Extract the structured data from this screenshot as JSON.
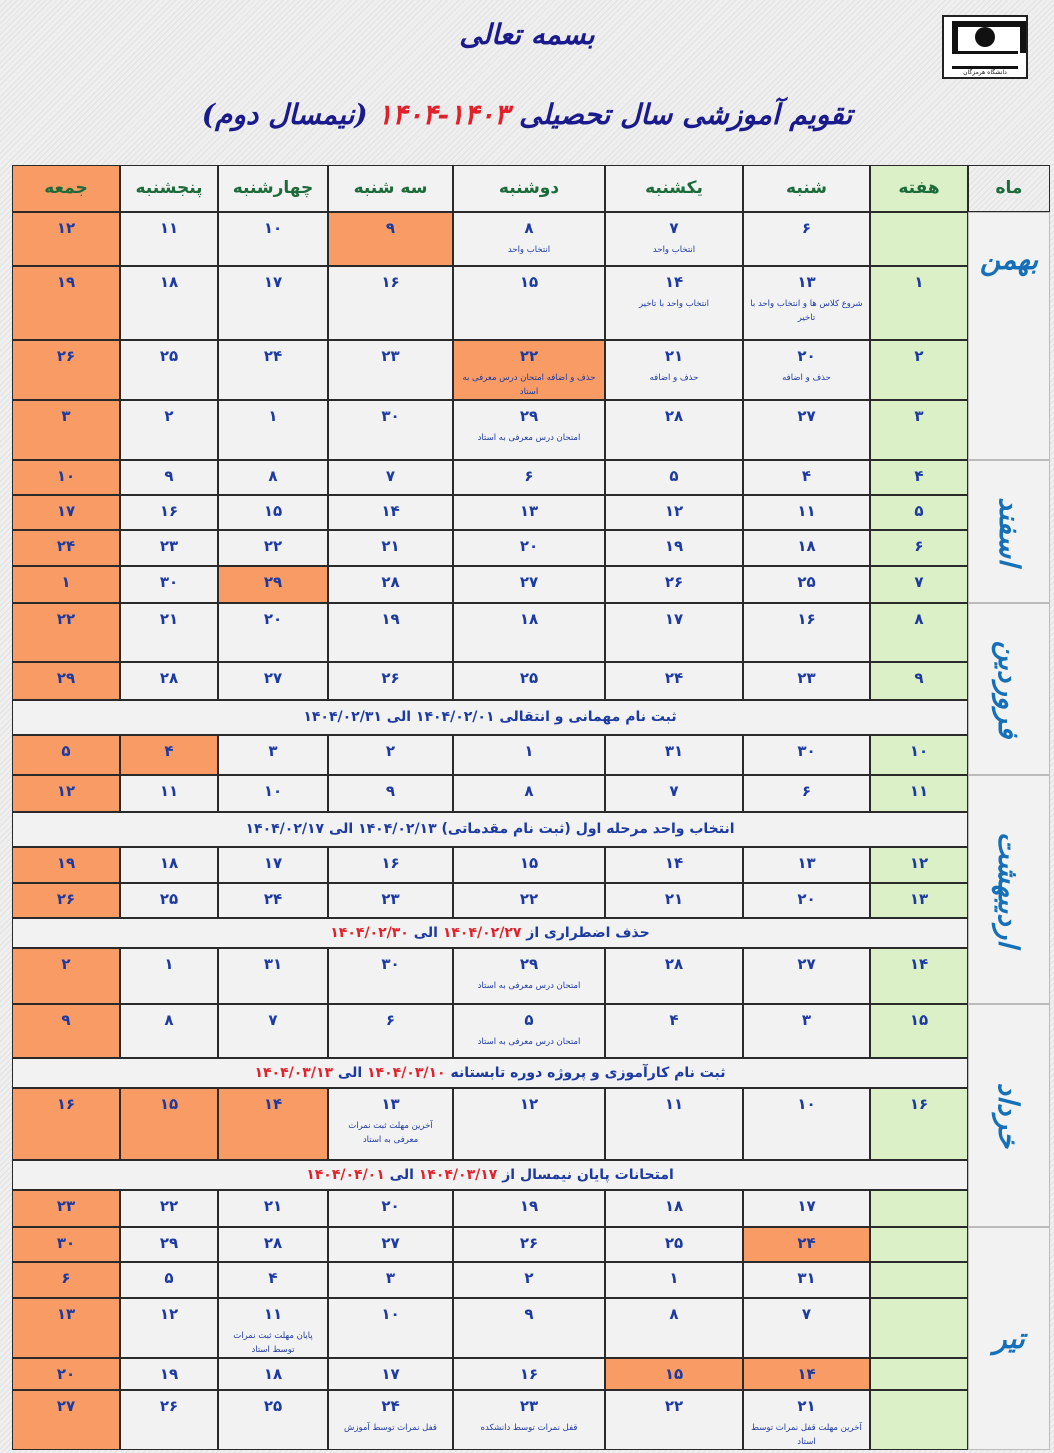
{
  "header": {
    "bismillah": "بسمه تعالی",
    "title_parts": [
      {
        "t": "تقویم آموزشی سال تحصیلی ",
        "red": false
      },
      {
        "t": "۱۴۰۳-۱۴۰۴",
        "red": true
      },
      {
        "t": " (نیمسال دوم)",
        "red": false
      }
    ],
    "logo_text": "دانشگاه هرمزگان"
  },
  "colors": {
    "holiday": "#f99b64",
    "week": "#dcf0c8",
    "cell": "#f2f2f2",
    "number": "#1c3aa0",
    "accent_red": "#e0202a",
    "header_text": "#1d6b3a"
  },
  "columns": [
    "ماه",
    "هفته",
    "شنبه",
    "یکشنبه",
    "دوشنبه",
    "سه شنبه",
    "چهارشنبه",
    "پنجشنبه",
    "جمعه"
  ],
  "months": [
    "بهمن",
    "اسفند",
    "فروردین",
    "اردیبهشت",
    "خرداد",
    "تیر"
  ],
  "rows": [
    {
      "type": "week",
      "week": "",
      "days": [
        {
          "n": "۶"
        },
        {
          "n": "۷",
          "note": "انتخاب واحد"
        },
        {
          "n": "۸",
          "note": "انتخاب واحد"
        },
        {
          "n": "۹",
          "hl": true
        },
        {
          "n": "۱۰"
        },
        {
          "n": "۱۱"
        },
        {
          "n": "۱۲",
          "hl": true
        }
      ]
    },
    {
      "type": "week",
      "week": "۱",
      "days": [
        {
          "n": "۱۳",
          "note": "شروع کلاس ها و انتخاب واحد با تاخیر"
        },
        {
          "n": "۱۴",
          "note": "انتخاب واحد با تاخیر"
        },
        {
          "n": "۱۵"
        },
        {
          "n": "۱۶"
        },
        {
          "n": "۱۷"
        },
        {
          "n": "۱۸"
        },
        {
          "n": "۱۹",
          "hl": true
        }
      ]
    },
    {
      "type": "week",
      "week": "۲",
      "days": [
        {
          "n": "۲۰",
          "note": "حذف و اضافه"
        },
        {
          "n": "۲۱",
          "note": "حذف و اضافه"
        },
        {
          "n": "۲۲",
          "note": "حذف و اضافه امتحان درس معرفی به استاد",
          "hl": true
        },
        {
          "n": "۲۳"
        },
        {
          "n": "۲۴"
        },
        {
          "n": "۲۵"
        },
        {
          "n": "۲۶",
          "hl": true
        }
      ]
    },
    {
      "type": "week",
      "week": "۳",
      "days": [
        {
          "n": "۲۷"
        },
        {
          "n": "۲۸"
        },
        {
          "n": "۲۹",
          "note": "امتحان درس معرفی به استاد"
        },
        {
          "n": "۳۰"
        },
        {
          "n": "۱"
        },
        {
          "n": "۲"
        },
        {
          "n": "۳",
          "hl": true
        }
      ]
    },
    {
      "type": "week",
      "week": "۴",
      "days": [
        {
          "n": "۴"
        },
        {
          "n": "۵"
        },
        {
          "n": "۶"
        },
        {
          "n": "۷"
        },
        {
          "n": "۸"
        },
        {
          "n": "۹"
        },
        {
          "n": "۱۰",
          "hl": true
        }
      ]
    },
    {
      "type": "week",
      "week": "۵",
      "days": [
        {
          "n": "۱۱"
        },
        {
          "n": "۱۲"
        },
        {
          "n": "۱۳"
        },
        {
          "n": "۱۴"
        },
        {
          "n": "۱۵"
        },
        {
          "n": "۱۶"
        },
        {
          "n": "۱۷",
          "hl": true
        }
      ]
    },
    {
      "type": "week",
      "week": "۶",
      "days": [
        {
          "n": "۱۸"
        },
        {
          "n": "۱۹"
        },
        {
          "n": "۲۰"
        },
        {
          "n": "۲۱"
        },
        {
          "n": "۲۲"
        },
        {
          "n": "۲۳"
        },
        {
          "n": "۲۴",
          "hl": true
        }
      ]
    },
    {
      "type": "week",
      "week": "۷",
      "days": [
        {
          "n": "۲۵"
        },
        {
          "n": "۲۶"
        },
        {
          "n": "۲۷"
        },
        {
          "n": "۲۸"
        },
        {
          "n": "۲۹",
          "hl": true
        },
        {
          "n": "۳۰"
        },
        {
          "n": "۱",
          "hl": true
        }
      ]
    },
    {
      "type": "week",
      "week": "۸",
      "days": [
        {
          "n": "۱۶"
        },
        {
          "n": "۱۷"
        },
        {
          "n": "۱۸"
        },
        {
          "n": "۱۹"
        },
        {
          "n": "۲۰"
        },
        {
          "n": "۲۱"
        },
        {
          "n": "۲۲",
          "hl": true
        }
      ]
    },
    {
      "type": "week",
      "week": "۹",
      "days": [
        {
          "n": "۲۳"
        },
        {
          "n": "۲۴"
        },
        {
          "n": "۲۵"
        },
        {
          "n": "۲۶"
        },
        {
          "n": "۲۷"
        },
        {
          "n": "۲۸"
        },
        {
          "n": "۲۹",
          "hl": true
        }
      ]
    },
    {
      "type": "banner",
      "parts": [
        {
          "t": "ثبت نام مهمانی و انتقالی ۱۴۰۴/۰۲/۰۱ الی ۱۴۰۴/۰۲/۳۱",
          "red": false
        }
      ]
    },
    {
      "type": "week",
      "week": "۱۰",
      "days": [
        {
          "n": "۳۰"
        },
        {
          "n": "۳۱"
        },
        {
          "n": "۱"
        },
        {
          "n": "۲"
        },
        {
          "n": "۳"
        },
        {
          "n": "۴",
          "hl": true
        },
        {
          "n": "۵",
          "hl": true
        }
      ]
    },
    {
      "type": "week",
      "week": "۱۱",
      "days": [
        {
          "n": "۶"
        },
        {
          "n": "۷"
        },
        {
          "n": "۸"
        },
        {
          "n": "۹"
        },
        {
          "n": "۱۰"
        },
        {
          "n": "۱۱"
        },
        {
          "n": "۱۲",
          "hl": true
        }
      ]
    },
    {
      "type": "banner",
      "parts": [
        {
          "t": "انتخاب واحد مرحله اول (ثبت نام مقدماتی) ۱۴۰۴/۰۲/۱۳ الی ۱۴۰۴/۰۲/۱۷",
          "red": false
        }
      ]
    },
    {
      "type": "week",
      "week": "۱۲",
      "days": [
        {
          "n": "۱۳"
        },
        {
          "n": "۱۴"
        },
        {
          "n": "۱۵"
        },
        {
          "n": "۱۶"
        },
        {
          "n": "۱۷"
        },
        {
          "n": "۱۸"
        },
        {
          "n": "۱۹",
          "hl": true
        }
      ]
    },
    {
      "type": "week",
      "week": "۱۳",
      "days": [
        {
          "n": "۲۰"
        },
        {
          "n": "۲۱"
        },
        {
          "n": "۲۲"
        },
        {
          "n": "۲۳"
        },
        {
          "n": "۲۴"
        },
        {
          "n": "۲۵"
        },
        {
          "n": "۲۶",
          "hl": true
        }
      ]
    },
    {
      "type": "banner",
      "parts": [
        {
          "t": "حذف اضطراری از ",
          "red": false
        },
        {
          "t": "۱۴۰۴/۰۲/۲۷",
          "red": true
        },
        {
          "t": " الی ",
          "red": false
        },
        {
          "t": "۱۴۰۴/۰۲/۳۰",
          "red": true
        }
      ]
    },
    {
      "type": "week",
      "week": "۱۴",
      "days": [
        {
          "n": "۲۷"
        },
        {
          "n": "۲۸"
        },
        {
          "n": "۲۹",
          "note": "امتحان درس معرفی به استاد"
        },
        {
          "n": "۳۰"
        },
        {
          "n": "۳۱"
        },
        {
          "n": "۱"
        },
        {
          "n": "۲",
          "hl": true
        }
      ]
    },
    {
      "type": "week",
      "week": "۱۵",
      "days": [
        {
          "n": "۳"
        },
        {
          "n": "۴"
        },
        {
          "n": "۵",
          "note": "امتحان درس معرفی به استاد"
        },
        {
          "n": "۶"
        },
        {
          "n": "۷"
        },
        {
          "n": "۸"
        },
        {
          "n": "۹",
          "hl": true
        }
      ]
    },
    {
      "type": "banner",
      "parts": [
        {
          "t": "ثبت نام کارآموزی و پروژه دوره تابستانه ",
          "red": false
        },
        {
          "t": "۱۴۰۴/۰۳/۱۰",
          "red": true
        },
        {
          "t": " الی ",
          "red": false
        },
        {
          "t": "۱۴۰۴/۰۳/۱۳",
          "red": true
        }
      ]
    },
    {
      "type": "week",
      "week": "۱۶",
      "days": [
        {
          "n": "۱۰"
        },
        {
          "n": "۱۱"
        },
        {
          "n": "۱۲"
        },
        {
          "n": "۱۳",
          "note": "آخرین مهلت ثبت نمرات معرفی به استاد"
        },
        {
          "n": "۱۴",
          "hl": true
        },
        {
          "n": "۱۵",
          "hl": true
        },
        {
          "n": "۱۶",
          "hl": true
        }
      ]
    },
    {
      "type": "banner",
      "parts": [
        {
          "t": "امتحانات پایان نیمسال از ",
          "red": false
        },
        {
          "t": "۱۴۰۴/۰۳/۱۷",
          "red": true
        },
        {
          "t": " الی ",
          "red": false
        },
        {
          "t": "۱۴۰۴/۰۴/۰۱",
          "red": true
        }
      ]
    },
    {
      "type": "week",
      "week": "",
      "days": [
        {
          "n": "۱۷"
        },
        {
          "n": "۱۸"
        },
        {
          "n": "۱۹"
        },
        {
          "n": "۲۰"
        },
        {
          "n": "۲۱"
        },
        {
          "n": "۲۲"
        },
        {
          "n": "۲۳",
          "hl": true
        }
      ]
    },
    {
      "type": "week",
      "week": "",
      "days": [
        {
          "n": "۲۴",
          "hl": true
        },
        {
          "n": "۲۵"
        },
        {
          "n": "۲۶"
        },
        {
          "n": "۲۷"
        },
        {
          "n": "۲۸"
        },
        {
          "n": "۲۹"
        },
        {
          "n": "۳۰",
          "hl": true
        }
      ]
    },
    {
      "type": "week",
      "week": "",
      "days": [
        {
          "n": "۳۱"
        },
        {
          "n": "۱"
        },
        {
          "n": "۲"
        },
        {
          "n": "۳"
        },
        {
          "n": "۴"
        },
        {
          "n": "۵"
        },
        {
          "n": "۶",
          "hl": true
        }
      ]
    },
    {
      "type": "week",
      "week": "",
      "days": [
        {
          "n": "۷"
        },
        {
          "n": "۸"
        },
        {
          "n": "۹"
        },
        {
          "n": "۱۰"
        },
        {
          "n": "۱۱",
          "note": "پایان مهلت ثبت نمرات توسط استاد"
        },
        {
          "n": "۱۲"
        },
        {
          "n": "۱۳",
          "hl": true
        }
      ]
    },
    {
      "type": "week",
      "week": "",
      "days": [
        {
          "n": "۱۴",
          "hl": true
        },
        {
          "n": "۱۵",
          "hl": true
        },
        {
          "n": "۱۶"
        },
        {
          "n": "۱۷"
        },
        {
          "n": "۱۸"
        },
        {
          "n": "۱۹"
        },
        {
          "n": "۲۰",
          "hl": true
        }
      ]
    },
    {
      "type": "week",
      "week": "",
      "days": [
        {
          "n": "۲۱",
          "note": "آخرین مهلت قفل نمرات توسط استاد"
        },
        {
          "n": "۲۲"
        },
        {
          "n": "۲۳",
          "note": "قفل نمرات توسط دانشکده"
        },
        {
          "n": "۲۴",
          "note": "قفل نمرات توسط آموزش"
        },
        {
          "n": "۲۵"
        },
        {
          "n": "۲۶"
        },
        {
          "n": "۲۷",
          "hl": true
        }
      ]
    }
  ]
}
